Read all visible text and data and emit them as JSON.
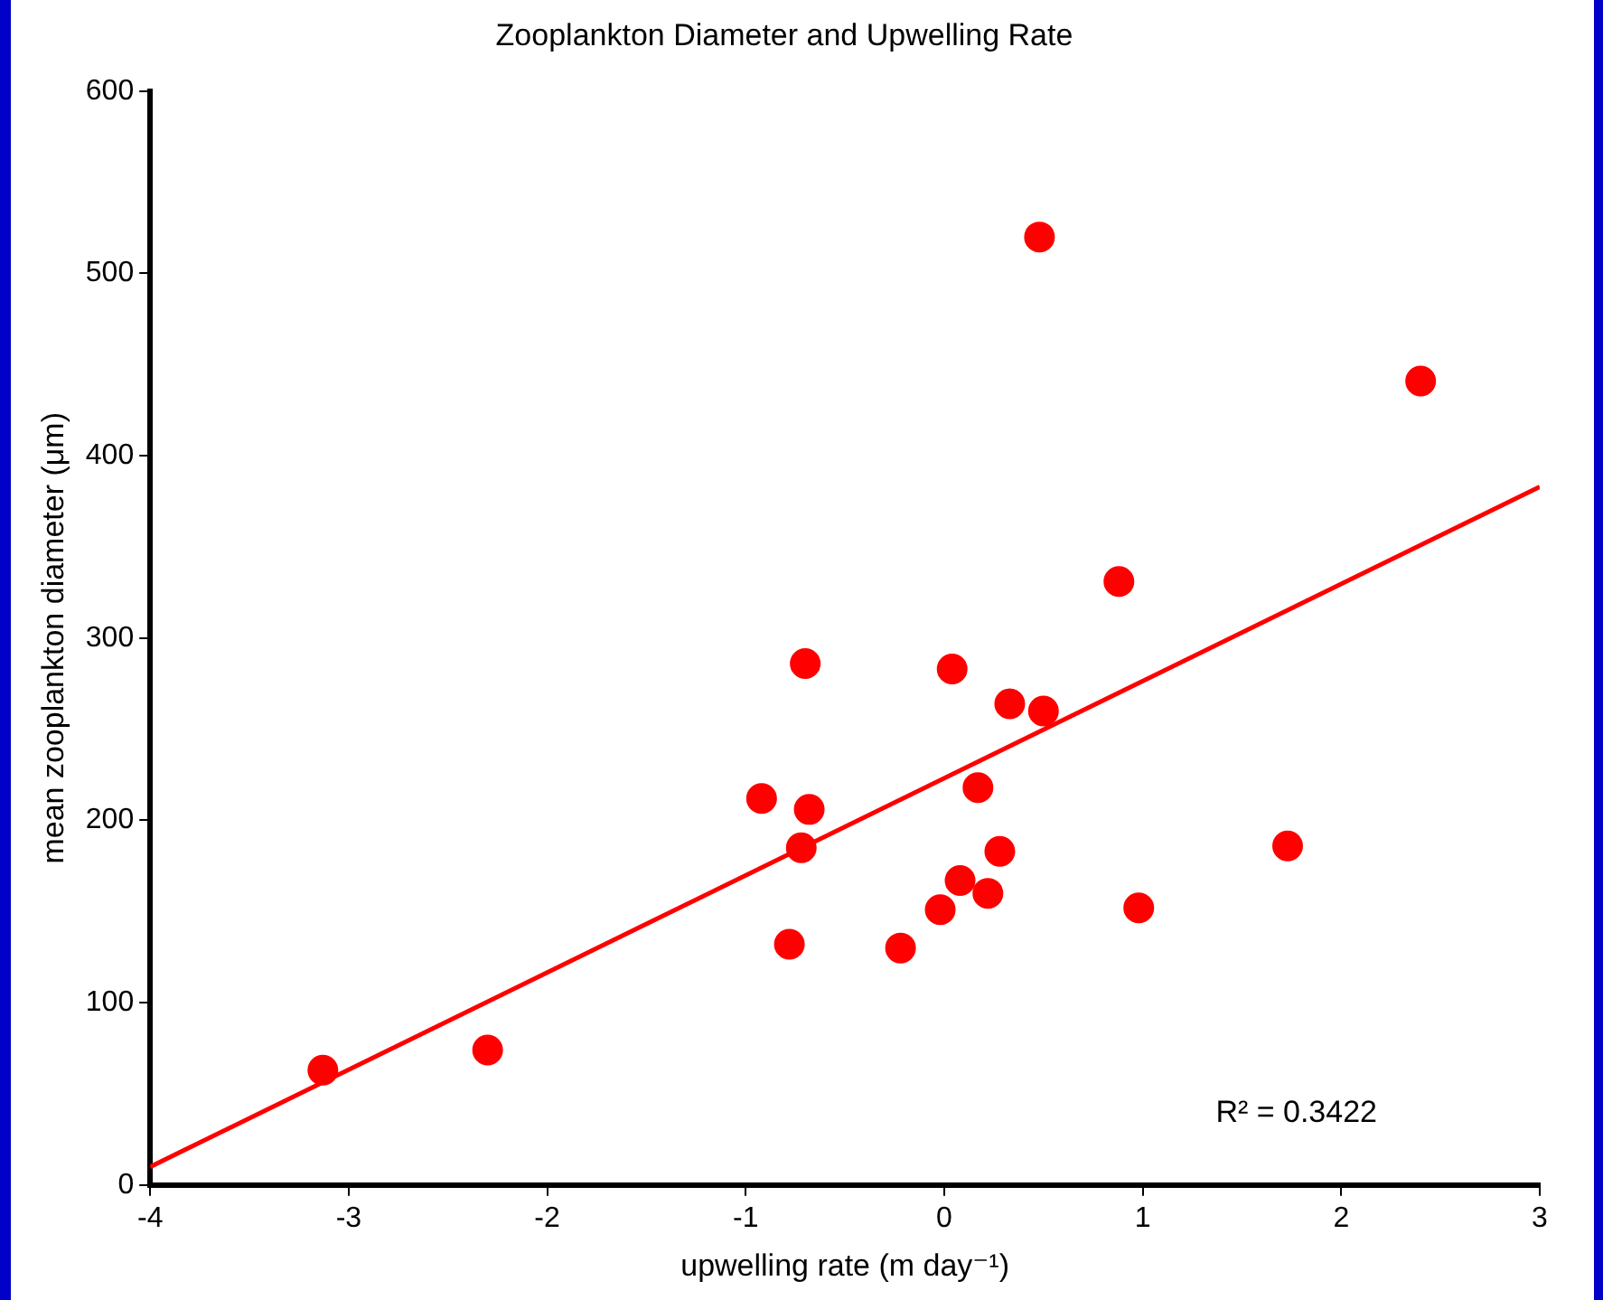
{
  "chart_data": {
    "type": "scatter",
    "title": "Zooplankton Diameter and Upwelling Rate",
    "xlabel": "upwelling rate (m day⁻¹)",
    "ylabel": "mean zooplankton diameter (μm)",
    "xlim": [
      -4,
      3
    ],
    "xticks": [
      -4,
      -3,
      -2,
      -1,
      0,
      1,
      2,
      3
    ],
    "ylim": [
      0,
      600
    ],
    "yticks": [
      0,
      100,
      200,
      300,
      400,
      500,
      600
    ],
    "grid": false,
    "legend": false,
    "marker": "circle",
    "series": [
      {
        "color": "#ff0000",
        "x": [
          -3.13,
          -2.3,
          -0.92,
          -0.78,
          -0.72,
          -0.7,
          -0.68,
          -0.22,
          -0.02,
          0.04,
          0.08,
          0.17,
          0.22,
          0.28,
          0.33,
          0.48,
          0.5,
          0.88,
          0.98,
          1.73,
          2.4
        ],
        "values": [
          63,
          74,
          212,
          132,
          185,
          286,
          206,
          130,
          151,
          283,
          167,
          218,
          160,
          183,
          264,
          520,
          260,
          331,
          152,
          186,
          441
        ]
      },
      {
        "type": "line",
        "color": "#ff0000",
        "marker": "none",
        "x": [
          -4,
          3
        ],
        "values": [
          10,
          383
        ]
      }
    ],
    "annotations": [
      "R² = 0.3422"
    ]
  }
}
